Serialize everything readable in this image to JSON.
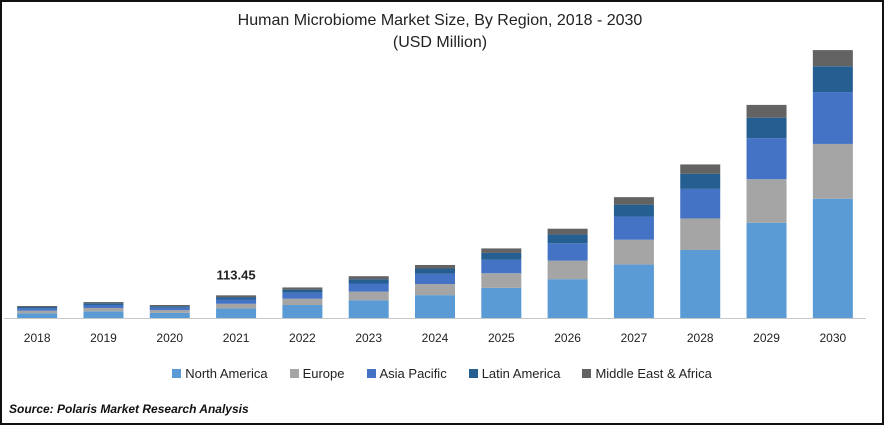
{
  "title_line1": "Human Microbiome Market Size, By Region, 2018 - 2030",
  "title_line2": "(USD Million)",
  "source": "Source: Polaris Market Research Analysis",
  "colors": {
    "north_america": "#5b9bd5",
    "europe": "#a5a5a5",
    "asia_pacific": "#4472c4",
    "latin_america": "#255e91",
    "middle_east_africa": "#636363"
  },
  "chart_data": {
    "type": "bar",
    "stacked": true,
    "categories": [
      "2018",
      "2019",
      "2020",
      "2021",
      "2022",
      "2023",
      "2024",
      "2025",
      "2026",
      "2027",
      "2028",
      "2029",
      "2030"
    ],
    "series": [
      {
        "name": "North America",
        "values": [
          24,
          34,
          26,
          48,
          66,
          90,
          116,
          153,
          197,
          271,
          345,
          483,
          605
        ]
      },
      {
        "name": "Europe",
        "values": [
          13,
          17,
          14,
          24,
          32,
          44,
          56,
          74,
          94,
          126,
          160,
          221,
          278
        ]
      },
      {
        "name": "Asia Pacific",
        "values": [
          12,
          15,
          12,
          22,
          30,
          41,
          52,
          68,
          88,
          118,
          150,
          208,
          263
        ]
      },
      {
        "name": "Latin America",
        "values": [
          7,
          9,
          8,
          12,
          16,
          22,
          27,
          35,
          45,
          60,
          76,
          104,
          131
        ]
      },
      {
        "name": "Middle East & Africa",
        "values": [
          5,
          6,
          6,
          9,
          11,
          15,
          18,
          23,
          29,
          38,
          48,
          65,
          82
        ]
      }
    ],
    "annotations": [
      {
        "category": "2021",
        "label": "113.45"
      }
    ],
    "legend_position": "bottom",
    "grid": false
  }
}
